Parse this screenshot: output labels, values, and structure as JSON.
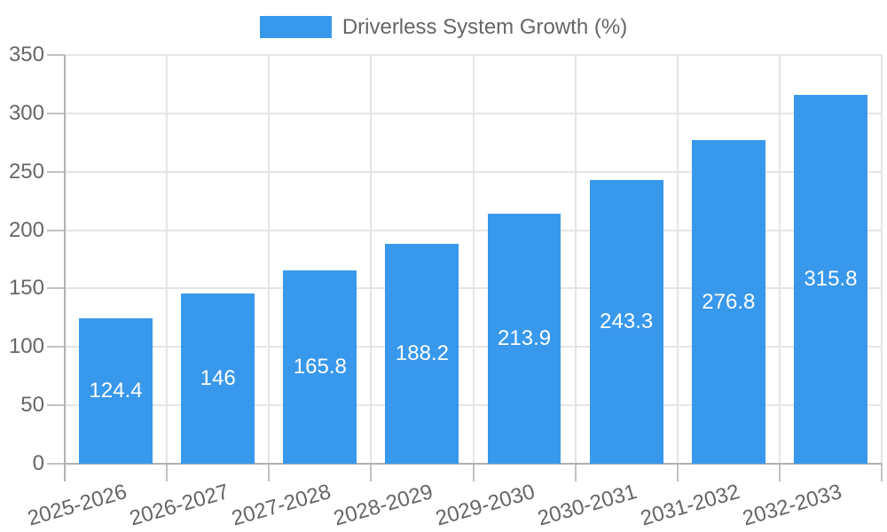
{
  "chart_data": {
    "type": "bar",
    "title": "",
    "legend": "Driverless System Growth (%)",
    "legend_position": "top",
    "categories": [
      "2025-2026",
      "2026-2027",
      "2027-2028",
      "2028-2029",
      "2029-2030",
      "2030-2031",
      "2031-2032",
      "2032-2033"
    ],
    "values": [
      124.4,
      146,
      165.8,
      188.2,
      213.9,
      243.3,
      276.8,
      315.8
    ],
    "bar_labels": [
      "124.4",
      "146",
      "165.8",
      "188.2",
      "213.9",
      "243.3",
      "276.8",
      "315.8"
    ],
    "xlabel": "",
    "ylabel": "",
    "ylim": [
      0,
      350
    ],
    "y_ticks": [
      0,
      50,
      100,
      150,
      200,
      250,
      300,
      350
    ],
    "grid": true,
    "colors": {
      "bar": "#3898ec",
      "text": "#666666",
      "grid": "#e5e5e5",
      "axis": "#b0b0b0",
      "tick": "#c2c2c2",
      "value_label": "#ffffff",
      "background": "#ffffff"
    }
  }
}
